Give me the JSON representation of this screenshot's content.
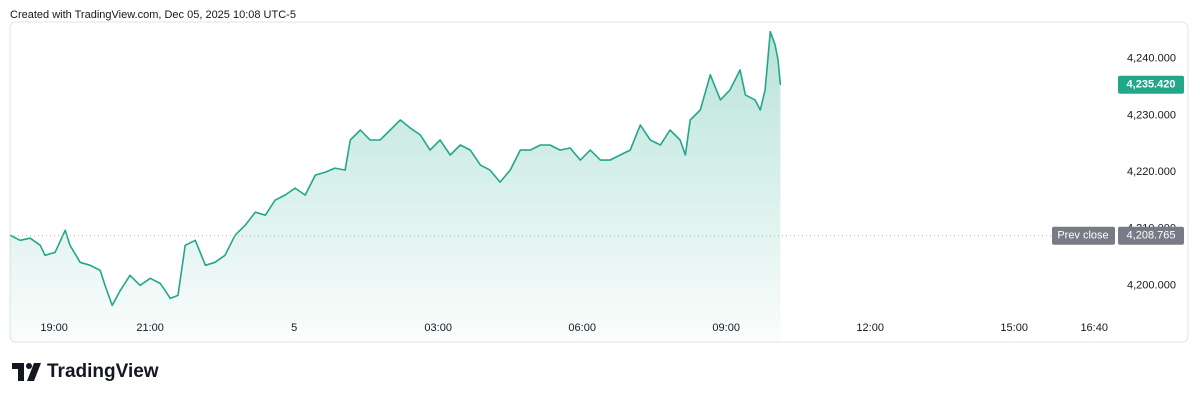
{
  "chart_data": {
    "type": "area",
    "title": "Created with TradingView.com, Dec 05, 2025 10:08 UTC-5",
    "brand": "TradingView",
    "color": "#22a78a",
    "xlim": [
      18.08,
      41.1
    ],
    "xticks": [
      {
        "value": 19,
        "label": "19:00"
      },
      {
        "value": 21,
        "label": "21:00"
      },
      {
        "value": 24,
        "label": "5"
      },
      {
        "value": 27,
        "label": "03:00"
      },
      {
        "value": 30,
        "label": "06:00"
      },
      {
        "value": 33,
        "label": "09:00"
      },
      {
        "value": 36,
        "label": "12:00"
      },
      {
        "value": 39,
        "label": "15:00"
      },
      {
        "value": 40.667,
        "label": "16:40"
      }
    ],
    "ylim": [
      4190,
      4246.5
    ],
    "yticks": [
      {
        "value": 4200,
        "label": "4,200.000"
      },
      {
        "value": 4210,
        "label": "4,210.000"
      },
      {
        "value": 4220,
        "label": "4,220.000"
      },
      {
        "value": 4230,
        "label": "4,230.000"
      },
      {
        "value": 4240,
        "label": "4,240.000"
      }
    ],
    "last_price": {
      "value": 4235.42,
      "label": "4,235.420"
    },
    "prev_close": {
      "name": "Prev close",
      "value": 4208.765,
      "label": "4,208.765"
    },
    "series": [
      {
        "x": [
          18.08,
          18.29,
          18.5,
          18.71,
          18.81,
          19.02,
          19.23,
          19.33,
          19.54,
          19.75,
          19.96,
          20.06,
          20.21,
          20.38,
          20.58,
          20.79,
          21.0,
          21.21,
          21.31,
          21.42,
          21.58,
          21.73,
          21.94,
          22.15,
          22.35,
          22.56,
          22.77,
          22.98,
          23.19,
          23.4,
          23.6,
          23.81,
          24.02,
          24.23,
          24.44,
          24.65,
          24.85,
          25.06,
          25.17,
          25.38,
          25.58,
          25.79,
          26.0,
          26.21,
          26.42,
          26.63,
          26.83,
          27.04,
          27.25,
          27.46,
          27.67,
          27.88,
          28.08,
          28.29,
          28.5,
          28.71,
          28.92,
          29.13,
          29.33,
          29.54,
          29.75,
          29.96,
          30.17,
          30.38,
          30.58,
          30.79,
          31.0,
          31.21,
          31.42,
          31.63,
          31.83,
          32.04,
          32.15,
          32.25,
          32.46,
          32.67,
          32.88,
          33.08,
          33.29,
          33.4,
          33.6,
          33.71,
          33.81,
          33.92,
          34.02,
          34.08,
          34.13
        ],
        "values": [
          4208.85,
          4207.96,
          4208.32,
          4207.08,
          4205.31,
          4205.84,
          4209.73,
          4207.08,
          4204.07,
          4203.54,
          4202.65,
          4200.0,
          4196.46,
          4199.12,
          4201.77,
          4200.0,
          4201.24,
          4200.35,
          4199.12,
          4197.7,
          4198.23,
          4207.08,
          4207.96,
          4203.54,
          4204.07,
          4205.31,
          4208.85,
          4210.62,
          4212.92,
          4212.39,
          4215.04,
          4215.93,
          4217.17,
          4215.93,
          4219.47,
          4220.0,
          4220.71,
          4220.35,
          4225.66,
          4227.43,
          4225.66,
          4225.66,
          4227.43,
          4229.2,
          4227.79,
          4226.55,
          4223.89,
          4225.66,
          4223.01,
          4224.78,
          4223.89,
          4221.24,
          4220.35,
          4218.23,
          4220.35,
          4223.89,
          4223.89,
          4224.78,
          4224.78,
          4223.89,
          4224.25,
          4222.12,
          4223.89,
          4222.12,
          4222.12,
          4223.01,
          4223.89,
          4228.32,
          4225.66,
          4224.78,
          4227.43,
          4225.66,
          4223.01,
          4229.2,
          4230.97,
          4237.17,
          4232.74,
          4234.51,
          4238.05,
          4233.63,
          4232.74,
          4230.97,
          4234.51,
          4244.78,
          4242.48,
          4239.82,
          4235.42
        ]
      }
    ]
  }
}
